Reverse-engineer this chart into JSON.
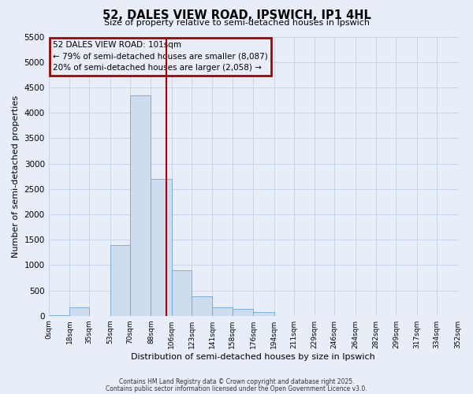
{
  "title": "52, DALES VIEW ROAD, IPSWICH, IP1 4HL",
  "subtitle": "Size of property relative to semi-detached houses in Ipswich",
  "xlabel": "Distribution of semi-detached houses by size in Ipswich",
  "ylabel": "Number of semi-detached properties",
  "bar_edges": [
    0,
    18,
    35,
    53,
    70,
    88,
    106,
    123,
    141,
    158,
    176,
    194,
    211,
    229,
    246,
    264,
    282,
    299,
    317,
    334,
    352
  ],
  "bar_heights": [
    5,
    170,
    0,
    1390,
    4340,
    2700,
    900,
    390,
    170,
    130,
    80,
    0,
    0,
    0,
    0,
    0,
    0,
    0,
    0,
    0
  ],
  "bar_color": "#cddcef",
  "bar_edgecolor": "#6fa8d8",
  "vline_x": 101,
  "vline_color": "#aa0000",
  "ylim": [
    0,
    5500
  ],
  "yticks": [
    0,
    500,
    1000,
    1500,
    2000,
    2500,
    3000,
    3500,
    4000,
    4500,
    5000,
    5500
  ],
  "xtick_labels": [
    "0sqm",
    "18sqm",
    "35sqm",
    "53sqm",
    "70sqm",
    "88sqm",
    "106sqm",
    "123sqm",
    "141sqm",
    "158sqm",
    "176sqm",
    "194sqm",
    "211sqm",
    "229sqm",
    "246sqm",
    "264sqm",
    "282sqm",
    "299sqm",
    "317sqm",
    "334sqm",
    "352sqm"
  ],
  "annotation_title": "52 DALES VIEW ROAD: 101sqm",
  "annotation_line1": "← 79% of semi-detached houses are smaller (8,087)",
  "annotation_line2": "20% of semi-detached houses are larger (2,058) →",
  "annotation_box_edgecolor": "#aa0000",
  "grid_color": "#c8d4e8",
  "bg_color": "#e8eef8",
  "footer1": "Contains HM Land Registry data © Crown copyright and database right 2025.",
  "footer2": "Contains public sector information licensed under the Open Government Licence v3.0."
}
